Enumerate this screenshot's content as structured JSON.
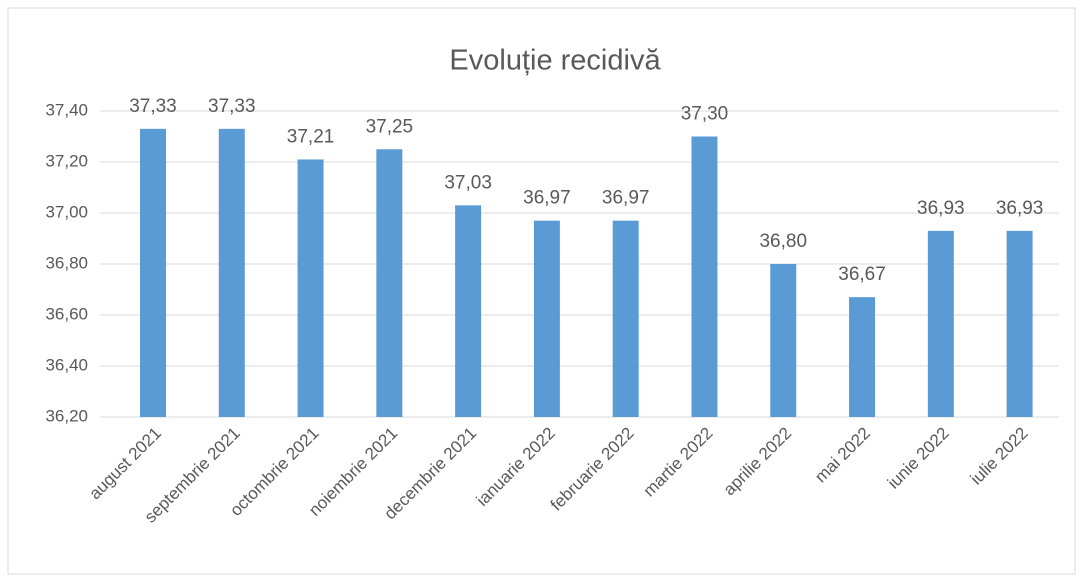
{
  "chart_data": {
    "type": "bar",
    "title": "Evoluție recidivă",
    "categories": [
      "august 2021",
      "septembrie 2021",
      "octombrie 2021",
      "noiembrie 2021",
      "decembrie 2021",
      "ianuarie 2022",
      "februarie 2022",
      "martie 2022",
      "aprilie 2022",
      "mai 2022",
      "iunie 2022",
      "iulie 2022"
    ],
    "values": [
      37.33,
      37.33,
      37.21,
      37.25,
      37.03,
      36.97,
      36.97,
      37.3,
      36.8,
      36.67,
      36.93,
      36.93
    ],
    "value_labels": [
      "37,33",
      "37,33",
      "37,21",
      "37,25",
      "37,03",
      "36,97",
      "36,97",
      "37,30",
      "36,80",
      "36,67",
      "36,93",
      "36,93"
    ],
    "color": "#5b9bd5",
    "ylim": [
      36.2,
      37.4
    ],
    "yticks": [
      {
        "value": 36.2,
        "label": "36,20"
      },
      {
        "value": 36.4,
        "label": "36,40"
      },
      {
        "value": 36.6,
        "label": "36,60"
      },
      {
        "value": 36.8,
        "label": "36,80"
      },
      {
        "value": 37.0,
        "label": "37,00"
      },
      {
        "value": 37.2,
        "label": "37,20"
      },
      {
        "value": 37.4,
        "label": "37,40"
      }
    ],
    "grid": true
  }
}
